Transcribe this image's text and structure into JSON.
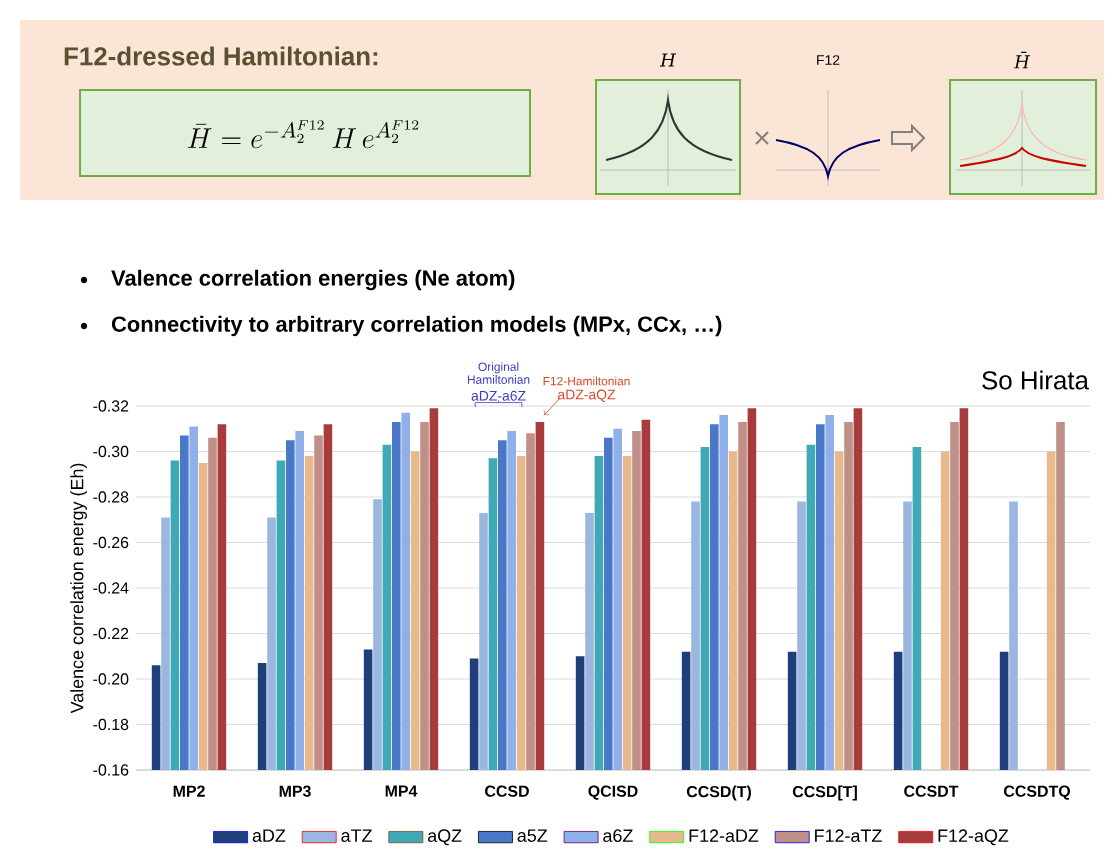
{
  "chart_data": {
    "type": "bar",
    "title": "F12-dressed Hamiltonian:",
    "annotations": [
      "\\bar{H} = e^{-A_2^{F12}}\\, H\\, e^{A_2^{F12}}",
      "H",
      "F12",
      "H̄",
      "Valence correlation energies (Ne atom)",
      "Connectivity to arbitrary correlation models (MPx, CCx, …)",
      "Original Hamiltonian",
      "aDZ-a6Z",
      "F12-Hamiltonian",
      "aDZ-aQZ",
      "So Hirata"
    ],
    "ylabel": "Valence correlation energy (Eh)",
    "categories": [
      "MP2",
      "MP3",
      "MP4",
      "CCSD",
      "QCISD",
      "CCSD(T)",
      "CCSD[T]",
      "CCSDT",
      "CCSDTQ"
    ],
    "series": [
      {
        "name": "aDZ",
        "color": "#1f3f7a",
        "values": [
          -0.206,
          -0.207,
          -0.213,
          -0.209,
          -0.21,
          -0.212,
          -0.212,
          -0.212,
          -0.212
        ]
      },
      {
        "name": "aTZ",
        "color": "#9bb7e0",
        "values": [
          -0.271,
          -0.271,
          -0.279,
          -0.273,
          -0.273,
          -0.278,
          -0.278,
          -0.278,
          -0.278
        ]
      },
      {
        "name": "aQZ",
        "color": "#3fa9b5",
        "values": [
          -0.296,
          -0.296,
          -0.303,
          -0.297,
          -0.298,
          -0.302,
          -0.303,
          -0.302,
          null
        ]
      },
      {
        "name": "a5Z",
        "color": "#4a78c8",
        "values": [
          -0.307,
          -0.305,
          -0.313,
          -0.305,
          -0.306,
          -0.312,
          -0.312,
          null,
          null
        ]
      },
      {
        "name": "a6Z",
        "color": "#8fb0e8",
        "values": [
          -0.311,
          -0.309,
          -0.317,
          -0.309,
          -0.31,
          -0.316,
          -0.316,
          null,
          null
        ]
      },
      {
        "name": "F12-aDZ",
        "color": "#e8b98a",
        "values": [
          -0.295,
          -0.298,
          -0.3,
          -0.298,
          -0.298,
          -0.3,
          -0.3,
          -0.3,
          -0.3
        ]
      },
      {
        "name": "F12-aTZ",
        "color": "#c09088",
        "values": [
          -0.306,
          -0.307,
          -0.313,
          -0.308,
          -0.309,
          -0.313,
          -0.313,
          -0.313,
          -0.313
        ]
      },
      {
        "name": "F12-aQZ",
        "color": "#a83c3c",
        "values": [
          -0.312,
          -0.312,
          -0.319,
          -0.313,
          -0.314,
          -0.319,
          -0.319,
          -0.319,
          null
        ]
      }
    ],
    "ylim": [
      -0.16,
      -0.32
    ],
    "yticks": [
      -0.16,
      -0.18,
      {
        "value": -0.2,
        "label": "-0.20"
      },
      -0.22,
      -0.24,
      -0.26,
      -0.28,
      {
        "value": -0.3,
        "label": "-0.30"
      },
      -0.32
    ],
    "grid": "y",
    "legend": "bottom"
  }
}
